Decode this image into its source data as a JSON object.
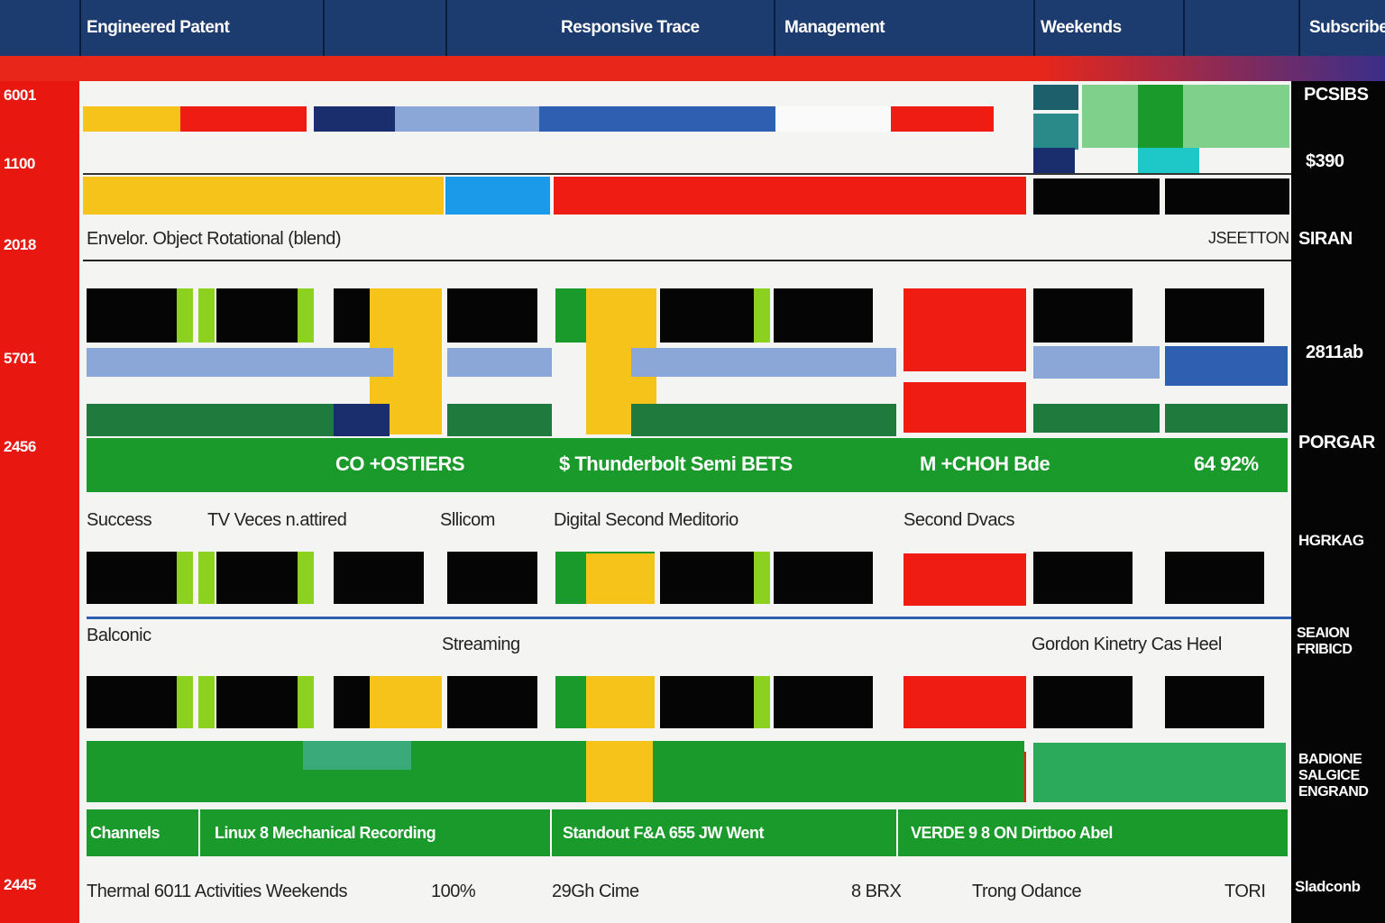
{
  "header": {
    "tabs": [
      "Engineered Patent",
      "Responsive Trace",
      "Management",
      "Weekends",
      "Subscribe"
    ]
  },
  "sidebar": {
    "labels": [
      "6001",
      "1100",
      "2018",
      "5701",
      "2456",
      "2445"
    ]
  },
  "right_panel": {
    "labels": [
      "PCSIBS",
      "$390",
      "SIRAN",
      "2811ab",
      "PORGAR",
      "HGRKAG",
      "SEAION FRIBICD",
      "BADIONE SALGICE ENGRAND",
      "Sladconb"
    ]
  },
  "rows": [
    {
      "cells": [
        "Envelor. Object Rotational (blend)",
        "JSEETTON"
      ]
    },
    {
      "cells": [
        "CO +OSTIERS",
        "$ Thunderbolt Semi BETS",
        "M +CHOH Bde",
        "64 92%"
      ]
    },
    {
      "cells": [
        "Success",
        "TV Veces n.attired",
        "Sllicom",
        "Digital Second Meditorio",
        "Second Dvacs"
      ]
    },
    {
      "cells": [
        "Balconic",
        "Streaming",
        "Gordon Kinetry Cas Heel"
      ]
    },
    {
      "cells": [
        "Channels",
        "Linux 8 Mechanical Recording",
        "Standout F&A 655 JW Went",
        "VERDE 9 8 ON Dirtboo Abel"
      ]
    },
    {
      "cells": [
        "Thermal 6011 Activities Weekends",
        "100%",
        "29Gh Cime",
        "8 BRX",
        "Trong Odance",
        "TORI"
      ]
    }
  ]
}
